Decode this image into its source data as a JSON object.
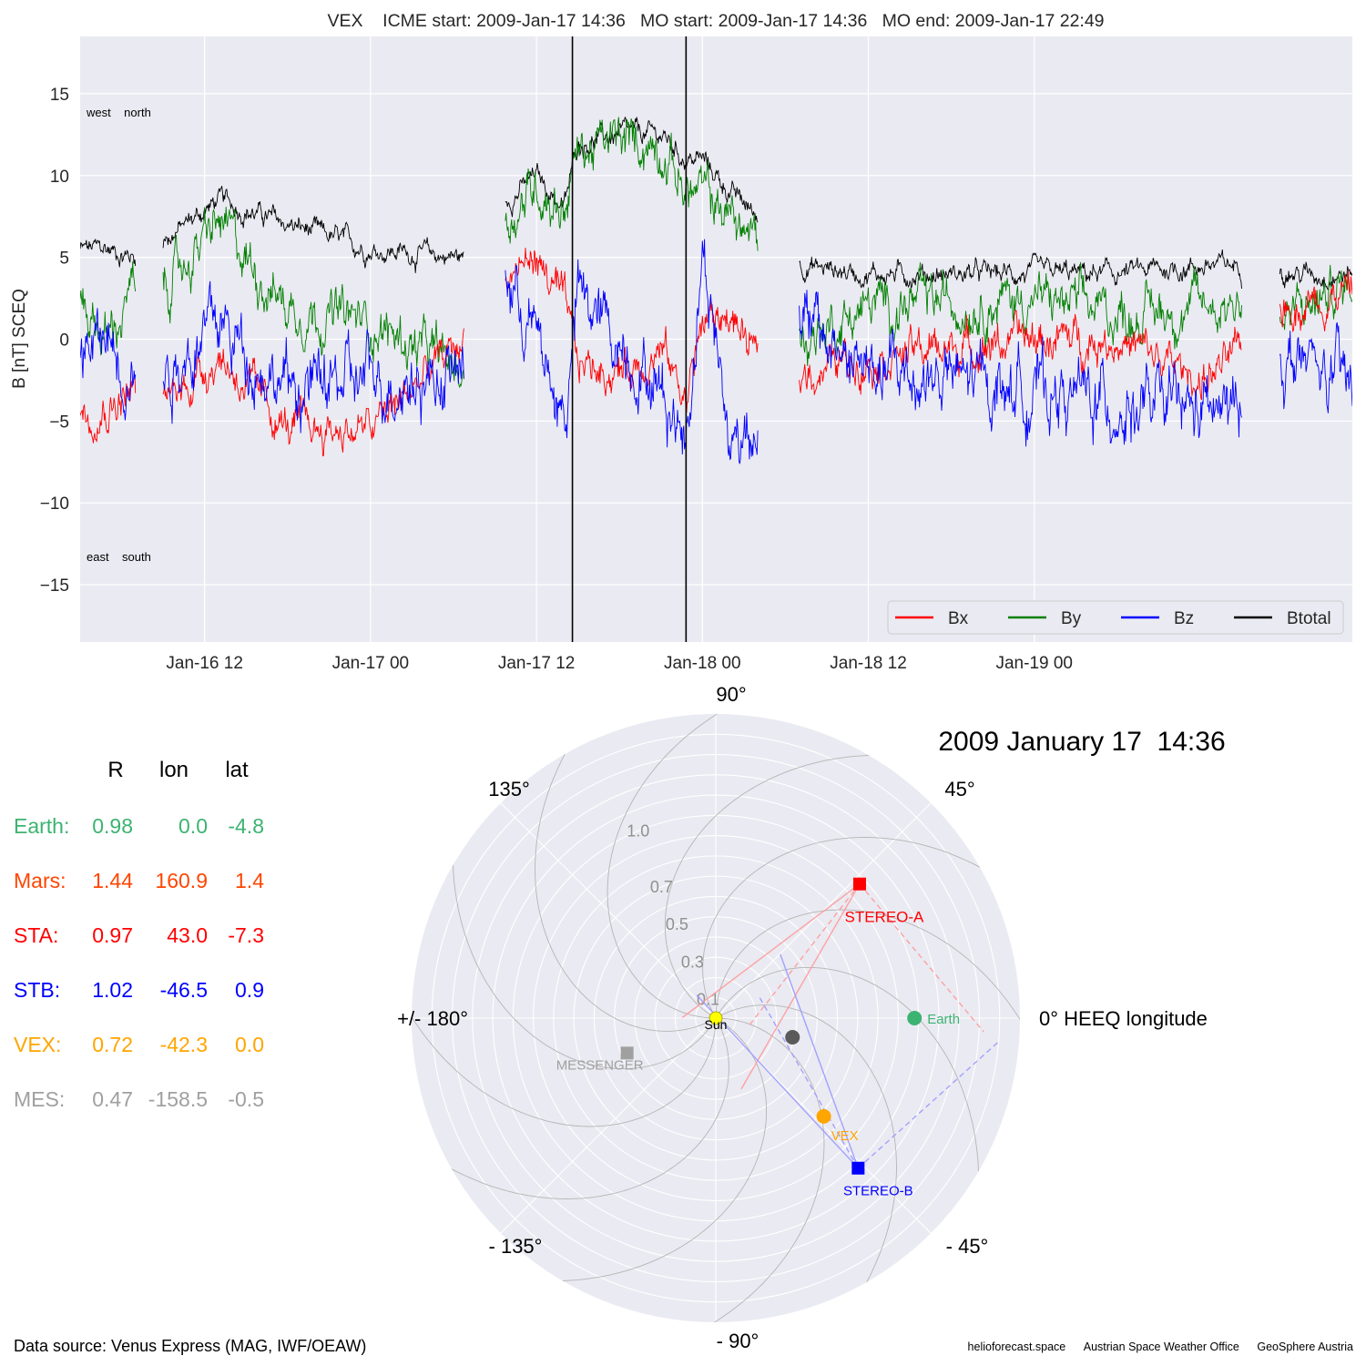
{
  "chart_data": [
    {
      "type": "line",
      "title": "VEX    ICME start: 2009-Jan-17 14:36   MO start: 2009-Jan-17 14:36   MO end: 2009-Jan-17 22:49",
      "ylabel": "B [nT] SCEQ",
      "xlabel": "",
      "ylim": [
        -18.5,
        18.5
      ],
      "xlim": [
        "2009-01-16 03:00",
        "2009-01-19 23:00"
      ],
      "x_tick_labels": [
        "Jan-16 12",
        "Jan-17 00",
        "Jan-17 12",
        "Jan-18 00",
        "Jan-18 12",
        "Jan-19 00"
      ],
      "y_tick_labels": [
        "−15",
        "−10",
        "−5",
        "0",
        "5",
        "10",
        "15"
      ],
      "y_ticks": [
        -15,
        -10,
        -5,
        0,
        5,
        10,
        15
      ],
      "grid": true,
      "legend_position": "bottom-right",
      "annotations": {
        "top_left": "west    north",
        "bottom_left": "east    south"
      },
      "vertical_lines": [
        "2009-01-17 14:36",
        "2009-01-17 22:49"
      ],
      "data_gaps_note": "",
      "segments": [
        [
          "2009-01-16 03:00",
          "2009-01-16 07:00"
        ],
        [
          "2009-01-16 09:00",
          "2009-01-17 06:45"
        ],
        [
          "2009-01-17 09:45",
          "2009-01-18 04:00"
        ],
        [
          "2009-01-18 07:00",
          "2009-01-19 15:00"
        ],
        [
          "2009-01-19 17:45",
          "2009-01-19 23:00"
        ]
      ],
      "series": [
        {
          "name": "Bx",
          "color": "#ff0000",
          "x": [
            "2009-01-16 03:00",
            "2009-01-16 05:00",
            "2009-01-16 07:00",
            "2009-01-16 09:00",
            "2009-01-16 13:00",
            "2009-01-16 18:00",
            "2009-01-17 00:00",
            "2009-01-17 06:45",
            "2009-01-17 09:45",
            "2009-01-17 12:00",
            "2009-01-17 14:00",
            "2009-01-17 15:00",
            "2009-01-17 18:00",
            "2009-01-17 21:00",
            "2009-01-17 22:49",
            "2009-01-18 00:00",
            "2009-01-18 02:00",
            "2009-01-18 04:00",
            "2009-01-18 07:00",
            "2009-01-18 12:00",
            "2009-01-19 00:00",
            "2009-01-19 06:00",
            "2009-01-19 12:00",
            "2009-01-19 15:00",
            "2009-01-19 17:45",
            "2009-01-19 23:00"
          ],
          "values": [
            -4.5,
            -4.0,
            -3.0,
            -4.0,
            -1.0,
            -5.5,
            -5.5,
            0.0,
            4.0,
            5.0,
            2.0,
            -1.5,
            -2.0,
            -0.5,
            -3.5,
            1.0,
            1.5,
            -1.5,
            -2.0,
            -1.0,
            0.0,
            0.0,
            -2.5,
            -1.0,
            2.0,
            3.0
          ]
        },
        {
          "name": "By",
          "color": "#008000",
          "x": [
            "2009-01-16 03:00",
            "2009-01-16 05:00",
            "2009-01-16 07:00",
            "2009-01-16 09:00",
            "2009-01-16 13:00",
            "2009-01-16 18:00",
            "2009-01-17 00:00",
            "2009-01-17 06:45",
            "2009-01-17 09:45",
            "2009-01-17 12:00",
            "2009-01-17 14:00",
            "2009-01-17 15:00",
            "2009-01-17 18:00",
            "2009-01-17 21:00",
            "2009-01-17 22:49",
            "2009-01-18 00:00",
            "2009-01-18 02:00",
            "2009-01-18 04:00",
            "2009-01-18 07:00",
            "2009-01-18 12:00",
            "2009-01-19 00:00",
            "2009-01-19 06:00",
            "2009-01-19 12:00",
            "2009-01-19 15:00",
            "2009-01-19 17:45",
            "2009-01-19 23:00"
          ],
          "values": [
            2.5,
            0.0,
            3.0,
            3.0,
            7.0,
            2.0,
            1.0,
            -2.0,
            7.0,
            9.5,
            8.0,
            11.5,
            12.0,
            12.0,
            9.0,
            9.0,
            7.5,
            6.0,
            0.0,
            2.0,
            2.5,
            1.5,
            2.0,
            2.5,
            1.0,
            3.5
          ]
        },
        {
          "name": "Bz",
          "color": "#0000ff",
          "x": [
            "2009-01-16 03:00",
            "2009-01-16 05:00",
            "2009-01-16 07:00",
            "2009-01-16 09:00",
            "2009-01-16 13:00",
            "2009-01-16 18:00",
            "2009-01-17 00:00",
            "2009-01-17 06:45",
            "2009-01-17 09:45",
            "2009-01-17 12:00",
            "2009-01-17 14:00",
            "2009-01-17 15:00",
            "2009-01-17 18:00",
            "2009-01-17 21:00",
            "2009-01-17 22:49",
            "2009-01-18 00:00",
            "2009-01-18 02:00",
            "2009-01-18 04:00",
            "2009-01-18 07:00",
            "2009-01-18 12:00",
            "2009-01-19 00:00",
            "2009-01-19 06:00",
            "2009-01-19 12:00",
            "2009-01-19 15:00",
            "2009-01-19 17:45",
            "2009-01-19 23:00"
          ],
          "values": [
            -1.0,
            0.0,
            -2.0,
            -2.0,
            1.0,
            -3.0,
            -2.5,
            -2.0,
            4.0,
            0.0,
            -5.0,
            2.5,
            0.0,
            -3.0,
            -6.0,
            6.0,
            -6.5,
            -4.5,
            1.0,
            -2.0,
            -3.0,
            -4.0,
            -4.5,
            -4.5,
            -1.0,
            -3.0
          ]
        },
        {
          "name": "Btotal",
          "color": "#000000",
          "x": [
            "2009-01-16 03:00",
            "2009-01-16 05:00",
            "2009-01-16 07:00",
            "2009-01-16 09:00",
            "2009-01-16 13:00",
            "2009-01-16 18:00",
            "2009-01-17 00:00",
            "2009-01-17 06:45",
            "2009-01-17 09:45",
            "2009-01-17 12:00",
            "2009-01-17 14:00",
            "2009-01-17 15:00",
            "2009-01-17 18:00",
            "2009-01-17 21:00",
            "2009-01-17 22:49",
            "2009-01-18 00:00",
            "2009-01-18 02:00",
            "2009-01-18 04:00",
            "2009-01-18 07:00",
            "2009-01-18 12:00",
            "2009-01-19 00:00",
            "2009-01-19 06:00",
            "2009-01-19 12:00",
            "2009-01-19 15:00",
            "2009-01-19 17:45",
            "2009-01-19 23:00"
          ],
          "values": [
            5.5,
            5.5,
            5.0,
            6.0,
            8.5,
            7.0,
            5.5,
            5.0,
            8.5,
            10.0,
            8.0,
            12.0,
            12.5,
            12.5,
            11.0,
            11.0,
            9.0,
            7.5,
            4.5,
            4.0,
            4.0,
            4.0,
            4.5,
            4.5,
            4.0,
            4.0
          ]
        }
      ]
    },
    {
      "type": "polar",
      "title": "2009 January 17  14:36",
      "angle_labels": [
        {
          "deg": 90,
          "text": "90°"
        },
        {
          "deg": 45,
          "text": "45°"
        },
        {
          "deg": 0,
          "text": "0° HEEQ longitude"
        },
        {
          "deg": -45,
          "text": "- 45°"
        },
        {
          "deg": -90,
          "text": "- 90°"
        },
        {
          "deg": -135,
          "text": "- 135°"
        },
        {
          "deg": 180,
          "text": "+/- 180°"
        },
        {
          "deg": 135,
          "text": "135°"
        }
      ],
      "r_max": 1.5,
      "r_ticks": [
        0.1,
        0.3,
        0.5,
        0.7,
        1.0
      ],
      "r_tick_labels": [
        "0.1",
        "0.3",
        "0.5",
        "0.7",
        "1.0"
      ],
      "bodies": [
        {
          "name": "Sun",
          "label": "Sun",
          "r": 0.0,
          "lon": 0.0,
          "marker": "circle",
          "color": "#ffff00"
        },
        {
          "name": "Earth",
          "label": "Earth",
          "r": 0.98,
          "lon": 0.0,
          "marker": "circle",
          "color": "#3cb371"
        },
        {
          "name": "STEREO-A",
          "label": "STEREO-A",
          "r": 0.97,
          "lon": 43.0,
          "marker": "square",
          "color": "#ff0000"
        },
        {
          "name": "STEREO-B",
          "label": "STEREO-B",
          "r": 1.02,
          "lon": -46.5,
          "marker": "square",
          "color": "#0000ff"
        },
        {
          "name": "VEX",
          "label": "VEX",
          "r": 0.72,
          "lon": -42.3,
          "marker": "circle",
          "color": "#ffa500"
        },
        {
          "name": "MESSENGER",
          "label": "MESSENGER",
          "r": 0.47,
          "lon": -158.5,
          "marker": "square",
          "color": "#a0a0a0"
        },
        {
          "name": "Venus",
          "label": "",
          "r": 0.39,
          "lon": -14.0,
          "marker": "circle",
          "color": "#5a5a5a"
        }
      ]
    }
  ],
  "table": {
    "headers": [
      "R",
      "lon",
      "lat"
    ],
    "rows": [
      {
        "label": "Earth:",
        "R": "0.98",
        "lon": "0.0",
        "lat": "-4.8",
        "color": "#3cb371"
      },
      {
        "label": "Mars:",
        "R": "1.44",
        "lon": "160.9",
        "lat": "1.4",
        "color": "#ff4500"
      },
      {
        "label": "STA:",
        "R": "0.97",
        "lon": "43.0",
        "lat": "-7.3",
        "color": "#ff0000"
      },
      {
        "label": "STB:",
        "R": "1.02",
        "lon": "-46.5",
        "lat": "0.9",
        "color": "#0000ff"
      },
      {
        "label": "VEX:",
        "R": "0.72",
        "lon": "-42.3",
        "lat": "0.0",
        "color": "#ffa500"
      },
      {
        "label": "MES:",
        "R": "0.47",
        "lon": "-158.5",
        "lat": "-0.5",
        "color": "#a0a0a0"
      }
    ]
  },
  "footer": {
    "source": "Data source: Venus Express (MAG, IWF/OEAW)",
    "credits": [
      "helioforecast.space",
      "Austrian Space Weather Office",
      "GeoSphere Austria"
    ]
  }
}
